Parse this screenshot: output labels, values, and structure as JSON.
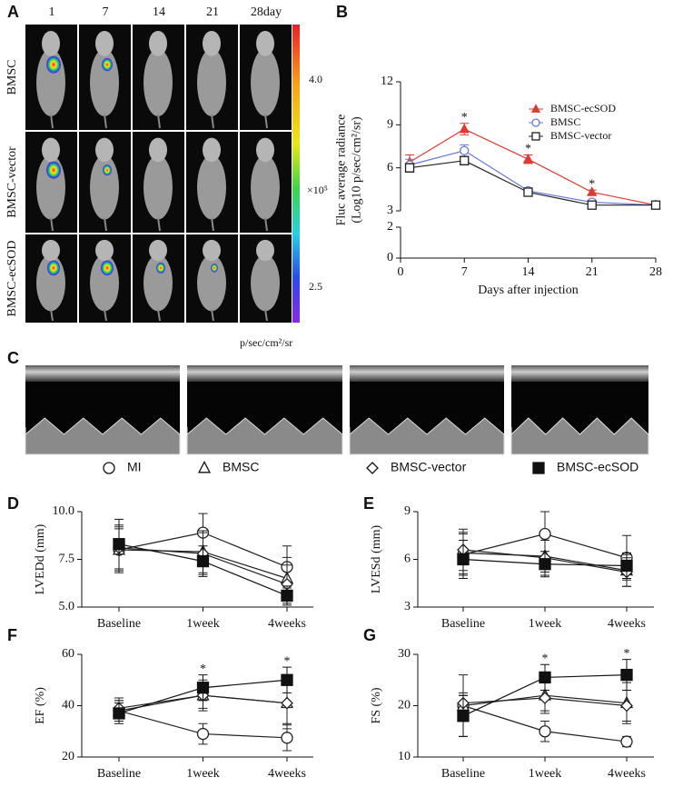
{
  "panel_a": {
    "label": "A",
    "columns": [
      "1",
      "7",
      "14",
      "21",
      "28day"
    ],
    "rows": [
      "BMSC",
      "BMSC-vector",
      "BMSC-ecSOD"
    ],
    "colorbar": {
      "labels": [
        "4.0",
        "×10⁵",
        "2.5"
      ],
      "unit": "p/sec/cm²/sr"
    }
  },
  "panel_c": {
    "label": "C"
  },
  "legend": [
    {
      "name": "MI",
      "marker": "circle",
      "filled": false
    },
    {
      "name": "BMSC",
      "marker": "triangle",
      "filled": false
    },
    {
      "name": "BMSC-vector",
      "marker": "diamond",
      "filled": false
    },
    {
      "name": "BMSC-ecSOD",
      "marker": "square",
      "filled": true
    }
  ],
  "chart_data": [
    {
      "label": "B",
      "type": "line",
      "x_label": "Days after injection",
      "y_label": [
        "Fluc average radiance",
        "(Log10 p/sec/cm²/sr)"
      ],
      "x": [
        1,
        7,
        14,
        21,
        28
      ],
      "xlim": [
        0,
        28
      ],
      "xticks": [
        0,
        7,
        14,
        21,
        28
      ],
      "ylim": [
        0,
        12
      ],
      "yticks": [
        0,
        2,
        3,
        6,
        9,
        12
      ],
      "axis_break": [
        2,
        3
      ],
      "legend_position": "upper right",
      "series": [
        {
          "name": "BMSC-ecSOD",
          "color": "#e03a2f",
          "marker": "triangle",
          "filled": true,
          "values": [
            6.4,
            8.7,
            6.6,
            4.3,
            3.4
          ],
          "errors": [
            0.5,
            0.4,
            0.3,
            0.15,
            0.1
          ]
        },
        {
          "name": "BMSC",
          "color": "#6a78d8",
          "marker": "circle",
          "filled": false,
          "values": [
            6.2,
            7.2,
            4.4,
            3.6,
            3.4
          ],
          "errors": [
            0.4,
            0.4,
            0.2,
            0.15,
            0.1
          ]
        },
        {
          "name": "BMSC-vector",
          "color": "#222222",
          "marker": "square",
          "filled": false,
          "values": [
            6.0,
            6.5,
            4.3,
            3.4,
            3.4
          ],
          "errors": [
            0.3,
            0.3,
            0.2,
            0.1,
            0.1
          ]
        }
      ],
      "annotations": [
        {
          "x": 7,
          "text": "*"
        },
        {
          "x": 14,
          "text": "*"
        },
        {
          "x": 21,
          "text": "*"
        }
      ]
    },
    {
      "label": "D",
      "type": "line",
      "y_label": "LVEDd (mm)",
      "categories": [
        "Baseline",
        "1week",
        "4weeks"
      ],
      "ylim": [
        5,
        10
      ],
      "yticks": [
        {
          "value": 5,
          "label": "5.0"
        },
        {
          "value": 7.5,
          "label": "7.5"
        },
        {
          "value": 10,
          "label": "10.0"
        }
      ],
      "series": [
        {
          "marker": "circle",
          "filled": false,
          "color": "#222222",
          "values": [
            8.0,
            8.9,
            7.1
          ],
          "errors": [
            1.2,
            1.0,
            1.1
          ]
        },
        {
          "marker": "triangle",
          "filled": false,
          "color": "#222222",
          "values": [
            8.0,
            7.9,
            6.5
          ],
          "errors": [
            1.1,
            1.1,
            1.1
          ]
        },
        {
          "marker": "diamond",
          "filled": false,
          "color": "#222222",
          "values": [
            8.1,
            7.8,
            6.2
          ],
          "errors": [
            1.2,
            1.1,
            1.0
          ]
        },
        {
          "marker": "square",
          "filled": true,
          "color": "#111111",
          "values": [
            8.3,
            7.4,
            5.6
          ],
          "errors": [
            1.3,
            0.8,
            0.5
          ]
        }
      ]
    },
    {
      "label": "E",
      "type": "line",
      "y_label": "LVESd (mm)",
      "categories": [
        "Baseline",
        "1week",
        "4weeks"
      ],
      "ylim": [
        3,
        9
      ],
      "yticks": [
        3,
        6,
        9
      ],
      "series": [
        {
          "marker": "circle",
          "filled": false,
          "color": "#222222",
          "values": [
            6.3,
            7.6,
            6.1
          ],
          "errors": [
            1.3,
            1.4,
            1.4
          ]
        },
        {
          "marker": "triangle",
          "filled": false,
          "color": "#222222",
          "values": [
            6.4,
            6.2,
            5.3
          ],
          "errors": [
            1.3,
            1.0,
            1.0
          ]
        },
        {
          "marker": "diamond",
          "filled": false,
          "color": "#222222",
          "values": [
            6.6,
            6.1,
            5.2
          ],
          "errors": [
            1.3,
            1.1,
            0.9
          ]
        },
        {
          "marker": "square",
          "filled": true,
          "color": "#111111",
          "values": [
            6.0,
            5.7,
            5.6
          ],
          "errors": [
            1.2,
            0.8,
            0.8
          ]
        }
      ]
    },
    {
      "label": "F",
      "type": "line",
      "y_label": "EF (%)",
      "categories": [
        "Baseline",
        "1week",
        "4weeks"
      ],
      "ylim": [
        20,
        60
      ],
      "yticks": [
        20,
        40,
        60
      ],
      "series": [
        {
          "marker": "circle",
          "filled": false,
          "color": "#222222",
          "values": [
            38,
            29,
            27.5
          ],
          "errors": [
            4,
            4,
            5
          ]
        },
        {
          "marker": "triangle",
          "filled": false,
          "color": "#222222",
          "values": [
            38,
            44,
            41
          ],
          "errors": [
            4,
            6,
            10
          ]
        },
        {
          "marker": "diamond",
          "filled": false,
          "color": "#222222",
          "values": [
            39,
            44,
            41
          ],
          "errors": [
            4,
            5,
            8
          ]
        },
        {
          "marker": "square",
          "filled": true,
          "color": "#111111",
          "values": [
            37,
            47,
            50
          ],
          "errors": [
            4,
            5,
            5
          ]
        }
      ],
      "annotations": [
        {
          "x": "1week",
          "text": "*"
        },
        {
          "x": "4weeks",
          "text": "*"
        }
      ]
    },
    {
      "label": "G",
      "type": "line",
      "y_label": "FS (%)",
      "categories": [
        "Baseline",
        "1week",
        "4weeks"
      ],
      "ylim": [
        10,
        30
      ],
      "yticks": [
        10,
        20,
        30
      ],
      "series": [
        {
          "marker": "circle",
          "filled": false,
          "color": "#222222",
          "values": [
            20,
            15,
            13
          ],
          "errors": [
            2,
            2,
            1
          ]
        },
        {
          "marker": "triangle",
          "filled": false,
          "color": "#222222",
          "values": [
            20,
            22,
            20.5
          ],
          "errors": [
            6,
            3,
            4
          ]
        },
        {
          "marker": "diamond",
          "filled": false,
          "color": "#222222",
          "values": [
            20.5,
            21.5,
            20
          ],
          "errors": [
            2,
            3,
            3
          ]
        },
        {
          "marker": "square",
          "filled": true,
          "color": "#111111",
          "values": [
            18,
            25.5,
            26
          ],
          "errors": [
            4,
            2.5,
            3
          ]
        }
      ],
      "annotations": [
        {
          "x": "1week",
          "text": "*"
        },
        {
          "x": "4weeks",
          "text": "*"
        }
      ]
    }
  ]
}
